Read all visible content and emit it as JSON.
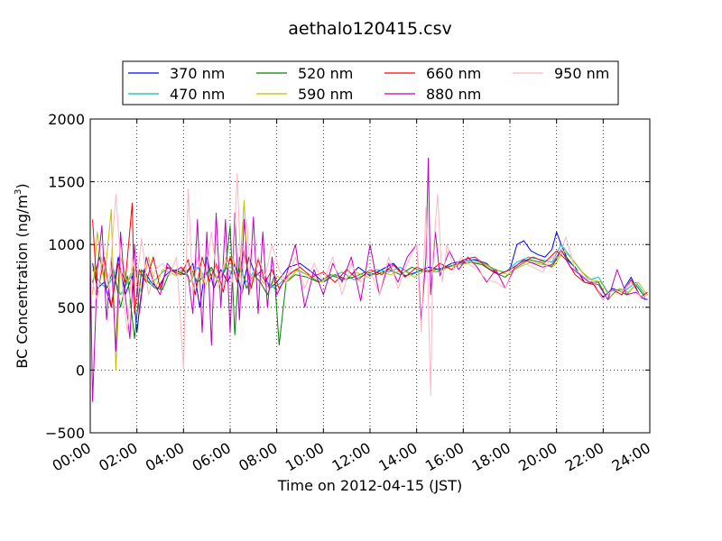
{
  "chart_data": {
    "type": "line",
    "title": "aethalo120415.csv",
    "xlabel": "Time on 2012-04-15 (JST)",
    "ylabel_main": "BC Concentration (ng/m",
    "ylabel_sup": "3",
    "ylabel_close": ")",
    "xlim": [
      0,
      24
    ],
    "ylim": [
      -500,
      2000
    ],
    "grid": true,
    "legend_position": "top",
    "x_ticks": [
      {
        "value": 0,
        "label": "00:00"
      },
      {
        "value": 2,
        "label": "02:00"
      },
      {
        "value": 4,
        "label": "04:00"
      },
      {
        "value": 6,
        "label": "06:00"
      },
      {
        "value": 8,
        "label": "08:00"
      },
      {
        "value": 10,
        "label": "10:00"
      },
      {
        "value": 12,
        "label": "12:00"
      },
      {
        "value": 14,
        "label": "14:00"
      },
      {
        "value": 16,
        "label": "16:00"
      },
      {
        "value": 18,
        "label": "18:00"
      },
      {
        "value": 20,
        "label": "20:00"
      },
      {
        "value": 22,
        "label": "22:00"
      },
      {
        "value": 24,
        "label": "24:00"
      }
    ],
    "y_ticks": [
      {
        "value": -500,
        "label": "−500"
      },
      {
        "value": 0,
        "label": "0"
      },
      {
        "value": 500,
        "label": "500"
      },
      {
        "value": 1000,
        "label": "1000"
      },
      {
        "value": 1500,
        "label": "1500"
      },
      {
        "value": 2000,
        "label": "2000"
      }
    ],
    "x_unit": "hours",
    "series": [
      {
        "name": "370 nm",
        "color": "#0000ff",
        "x": [
          0.1,
          0.3,
          0.6,
          0.9,
          1.2,
          1.5,
          1.8,
          2.0,
          2.3,
          2.6,
          2.9,
          3.2,
          3.5,
          3.8,
          4.1,
          4.4,
          4.7,
          5.0,
          5.3,
          5.6,
          5.9,
          6.2,
          6.5,
          6.8,
          7.1,
          7.4,
          7.7,
          8.0,
          8.5,
          9.0,
          9.5,
          10.0,
          10.5,
          11.0,
          11.5,
          12.0,
          12.5,
          13.0,
          13.5,
          14.0,
          14.5,
          15.0,
          15.5,
          16.0,
          16.5,
          17.0,
          17.5,
          18.0,
          18.3,
          18.6,
          18.9,
          19.2,
          19.5,
          19.8,
          20.0,
          20.2,
          20.5,
          20.8,
          21.2,
          21.6,
          22.0,
          22.4,
          22.8,
          23.2,
          23.6,
          23.9
        ],
        "values": [
          850,
          650,
          700,
          500,
          900,
          600,
          750,
          300,
          800,
          700,
          650,
          750,
          800,
          780,
          760,
          850,
          500,
          900,
          650,
          800,
          700,
          850,
          600,
          900,
          750,
          800,
          650,
          700,
          820,
          850,
          780,
          700,
          760,
          720,
          820,
          750,
          800,
          850,
          750,
          780,
          820,
          800,
          850,
          870,
          880,
          850,
          760,
          800,
          1000,
          1030,
          950,
          920,
          900,
          960,
          1100,
          1000,
          870,
          820,
          700,
          680,
          580,
          650,
          620,
          740,
          580,
          560
        ]
      },
      {
        "name": "470 nm",
        "color": "#00bfbf",
        "x": [
          0.1,
          0.4,
          0.7,
          1.0,
          1.3,
          1.6,
          1.9,
          2.2,
          2.5,
          2.8,
          3.1,
          3.4,
          3.7,
          4.0,
          4.3,
          4.6,
          4.9,
          5.2,
          5.5,
          5.8,
          6.1,
          6.4,
          6.7,
          7.0,
          7.3,
          7.6,
          7.9,
          8.3,
          8.8,
          9.3,
          9.8,
          10.3,
          10.8,
          11.3,
          11.8,
          12.3,
          12.8,
          13.3,
          13.8,
          14.3,
          14.8,
          15.3,
          15.8,
          16.3,
          16.8,
          17.3,
          17.8,
          18.3,
          18.8,
          19.3,
          19.8,
          20.2,
          20.6,
          21.0,
          21.4,
          21.8,
          22.2,
          22.6,
          23.0,
          23.4,
          23.8
        ],
        "values": [
          800,
          700,
          650,
          750,
          600,
          700,
          800,
          750,
          700,
          720,
          780,
          820,
          760,
          800,
          700,
          820,
          750,
          800,
          700,
          820,
          760,
          800,
          700,
          780,
          750,
          700,
          650,
          720,
          800,
          760,
          700,
          740,
          780,
          720,
          760,
          800,
          780,
          820,
          760,
          800,
          780,
          820,
          850,
          880,
          860,
          800,
          780,
          860,
          900,
          880,
          860,
          1000,
          900,
          800,
          720,
          740,
          620,
          640,
          640,
          700,
          600
        ]
      },
      {
        "name": "520 nm",
        "color": "#008000",
        "x": [
          0.1,
          0.4,
          0.7,
          1.0,
          1.3,
          1.6,
          1.9,
          2.2,
          2.5,
          2.8,
          3.1,
          3.4,
          3.7,
          4.0,
          4.3,
          4.6,
          4.9,
          5.2,
          5.5,
          5.8,
          6.0,
          6.2,
          6.4,
          6.7,
          7.0,
          7.3,
          7.6,
          7.9,
          8.1,
          8.4,
          8.8,
          9.3,
          9.8,
          10.3,
          10.8,
          11.3,
          11.8,
          12.3,
          12.8,
          13.3,
          13.8,
          14.3,
          14.8,
          15.3,
          15.8,
          16.3,
          16.8,
          17.3,
          17.8,
          18.3,
          18.8,
          19.3,
          19.8,
          20.2,
          20.6,
          21.0,
          21.4,
          21.8,
          22.2,
          22.6,
          23.0,
          23.4,
          23.8
        ],
        "values": [
          700,
          900,
          650,
          800,
          500,
          750,
          250,
          800,
          700,
          650,
          640,
          780,
          800,
          760,
          820,
          700,
          750,
          820,
          700,
          800,
          1150,
          280,
          900,
          650,
          760,
          700,
          600,
          750,
          200,
          700,
          760,
          740,
          700,
          760,
          720,
          740,
          780,
          760,
          800,
          760,
          820,
          780,
          800,
          820,
          850,
          860,
          840,
          780,
          740,
          820,
          880,
          860,
          820,
          950,
          860,
          760,
          700,
          700,
          560,
          640,
          600,
          680,
          580
        ]
      },
      {
        "name": "590 nm",
        "color": "#bfbf00",
        "x": [
          0.1,
          0.3,
          0.6,
          0.9,
          1.1,
          1.3,
          1.6,
          1.9,
          2.2,
          2.5,
          2.8,
          3.1,
          3.4,
          3.7,
          4.0,
          4.3,
          4.6,
          4.9,
          5.2,
          5.5,
          5.8,
          6.1,
          6.4,
          6.6,
          6.8,
          7.1,
          7.4,
          7.7,
          8.0,
          8.4,
          8.9,
          9.4,
          9.9,
          10.4,
          10.9,
          11.4,
          11.9,
          12.4,
          12.9,
          13.4,
          13.9,
          14.4,
          14.9,
          15.4,
          15.9,
          16.4,
          16.9,
          17.4,
          17.9,
          18.4,
          18.9,
          19.4,
          19.9,
          20.3,
          20.7,
          21.1,
          21.5,
          21.9,
          22.3,
          22.7,
          23.1,
          23.5,
          23.9
        ],
        "values": [
          600,
          1100,
          700,
          1280,
          0,
          900,
          700,
          850,
          600,
          900,
          650,
          800,
          780,
          750,
          820,
          700,
          900,
          650,
          800,
          700,
          850,
          900,
          750,
          1350,
          600,
          800,
          700,
          650,
          750,
          700,
          800,
          750,
          700,
          760,
          720,
          780,
          740,
          780,
          760,
          800,
          740,
          800,
          780,
          820,
          840,
          860,
          850,
          800,
          760,
          820,
          860,
          840,
          830,
          950,
          880,
          780,
          720,
          700,
          580,
          650,
          620,
          700,
          600
        ]
      },
      {
        "name": "660 nm",
        "color": "#ff0000",
        "x": [
          0.1,
          0.3,
          0.6,
          0.9,
          1.2,
          1.5,
          1.8,
          1.9,
          2.1,
          2.4,
          2.7,
          3.0,
          3.3,
          3.6,
          3.9,
          4.2,
          4.5,
          4.8,
          5.1,
          5.4,
          5.7,
          6.0,
          6.3,
          6.6,
          6.9,
          7.2,
          7.5,
          7.8,
          8.1,
          8.5,
          9.0,
          9.5,
          10.0,
          10.5,
          11.0,
          11.5,
          12.0,
          12.5,
          13.0,
          13.5,
          14.0,
          14.5,
          15.0,
          15.5,
          16.0,
          16.5,
          17.0,
          17.5,
          18.0,
          18.5,
          19.0,
          19.5,
          20.0,
          20.4,
          20.8,
          21.2,
          21.6,
          22.0,
          22.4,
          22.8,
          23.2,
          23.6,
          23.9
        ],
        "values": [
          1200,
          600,
          900,
          500,
          850,
          700,
          1330,
          450,
          800,
          700,
          900,
          650,
          820,
          780,
          760,
          880,
          600,
          900,
          700,
          850,
          620,
          900,
          700,
          950,
          650,
          880,
          700,
          800,
          650,
          760,
          820,
          740,
          780,
          700,
          800,
          720,
          800,
          760,
          840,
          740,
          820,
          780,
          850,
          800,
          880,
          900,
          820,
          760,
          800,
          860,
          900,
          860,
          950,
          880,
          760,
          700,
          680,
          560,
          640,
          600,
          720,
          580,
          620
        ]
      },
      {
        "name": "880 nm",
        "color": "#bf00bf",
        "x": [
          0.0,
          0.1,
          0.3,
          0.5,
          0.7,
          0.9,
          1.1,
          1.3,
          1.5,
          1.7,
          1.9,
          2.1,
          2.4,
          2.7,
          3.0,
          3.3,
          3.6,
          3.9,
          4.2,
          4.4,
          4.6,
          4.8,
          5.0,
          5.2,
          5.4,
          5.6,
          5.8,
          6.0,
          6.2,
          6.4,
          6.6,
          6.8,
          7.0,
          7.2,
          7.4,
          7.6,
          7.8,
          8.0,
          8.4,
          8.8,
          9.2,
          9.6,
          10.0,
          10.4,
          10.8,
          11.2,
          11.6,
          12.0,
          12.4,
          12.8,
          13.2,
          13.6,
          14.0,
          14.2,
          14.4,
          14.5,
          14.6,
          14.8,
          15.0,
          15.4,
          15.8,
          16.2,
          16.6,
          17.0,
          17.4,
          17.8,
          18.2,
          18.6,
          19.0,
          19.4,
          19.8,
          20.2,
          20.6,
          21.0,
          21.4,
          21.8,
          22.2,
          22.6,
          23.0,
          23.4,
          23.8
        ],
        "values": [
          900,
          -250,
          800,
          1150,
          400,
          900,
          150,
          1100,
          600,
          250,
          1000,
          450,
          900,
          700,
          600,
          850,
          780,
          820,
          750,
          450,
          1200,
          300,
          1100,
          200,
          1250,
          500,
          1200,
          300,
          1250,
          400,
          1200,
          600,
          1220,
          450,
          1100,
          500,
          900,
          600,
          750,
          1000,
          500,
          800,
          600,
          850,
          700,
          900,
          550,
          1000,
          600,
          850,
          700,
          900,
          1000,
          400,
          900,
          1690,
          600,
          1100,
          750,
          950,
          800,
          900,
          820,
          700,
          800,
          650,
          820,
          880,
          850,
          820,
          840,
          960,
          820,
          760,
          700,
          680,
          560,
          800,
          600,
          620,
          560
        ]
      },
      {
        "name": "950 nm",
        "color": "#ffb6c1",
        "x": [
          0.1,
          0.3,
          0.5,
          0.8,
          1.1,
          1.4,
          1.6,
          1.8,
          2.0,
          2.2,
          2.5,
          2.8,
          3.1,
          3.4,
          3.7,
          4.0,
          4.2,
          4.4,
          4.6,
          4.9,
          5.2,
          5.5,
          5.8,
          6.1,
          6.3,
          6.5,
          6.7,
          6.9,
          7.2,
          7.5,
          7.8,
          8.1,
          8.4,
          8.8,
          9.2,
          9.6,
          10.0,
          10.4,
          10.8,
          11.2,
          11.6,
          12.0,
          12.4,
          12.8,
          13.2,
          13.6,
          14.0,
          14.2,
          14.4,
          14.6,
          14.7,
          14.9,
          15.1,
          15.3,
          15.6,
          15.9,
          16.2,
          16.6,
          17.0,
          17.4,
          17.8,
          18.2,
          18.6,
          19.0,
          19.4,
          19.8,
          20.1,
          20.4,
          20.8,
          21.2,
          21.6,
          22.0,
          22.4,
          22.8,
          23.2,
          23.6,
          23.9
        ],
        "values": [
          700,
          550,
          900,
          650,
          1400,
          600,
          300,
          900,
          700,
          1050,
          600,
          800,
          850,
          750,
          900,
          10,
          1440,
          600,
          900,
          700,
          1100,
          650,
          900,
          700,
          1560,
          600,
          1200,
          700,
          900,
          750,
          1000,
          800,
          700,
          900,
          650,
          850,
          700,
          900,
          600,
          850,
          700,
          800,
          600,
          900,
          650,
          850,
          1000,
          300,
          1300,
          -200,
          900,
          1400,
          700,
          1000,
          800,
          900,
          850,
          800,
          720,
          700,
          650,
          800,
          850,
          820,
          780,
          900,
          900,
          1060,
          800,
          740,
          700,
          560,
          640,
          620,
          700,
          580,
          600
        ]
      }
    ]
  }
}
